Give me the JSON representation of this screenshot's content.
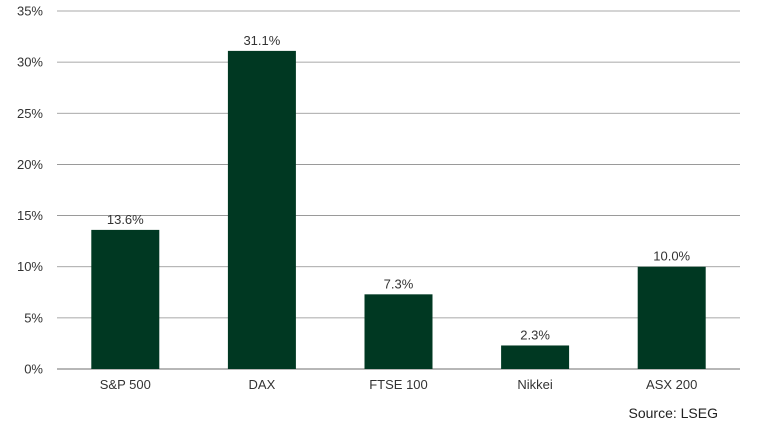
{
  "chart_data": {
    "type": "bar",
    "categories": [
      "S&P 500",
      "DAX",
      "FTSE 100",
      "Nikkei",
      "ASX 200"
    ],
    "values": [
      13.6,
      31.1,
      7.3,
      2.3,
      10.0
    ],
    "data_labels": [
      "13.6%",
      "31.1%",
      "7.3%",
      "2.3%",
      "10.0%"
    ],
    "ylim": [
      0,
      35
    ],
    "y_ticks": [
      0,
      5,
      10,
      15,
      20,
      25,
      30,
      35
    ],
    "y_tick_labels": [
      "0%",
      "5%",
      "10%",
      "15%",
      "20%",
      "25%",
      "30%",
      "35%"
    ],
    "grid": true,
    "bar_color": "#003822",
    "grid_color": "#8c8c8c"
  },
  "source": "Source: LSEG"
}
